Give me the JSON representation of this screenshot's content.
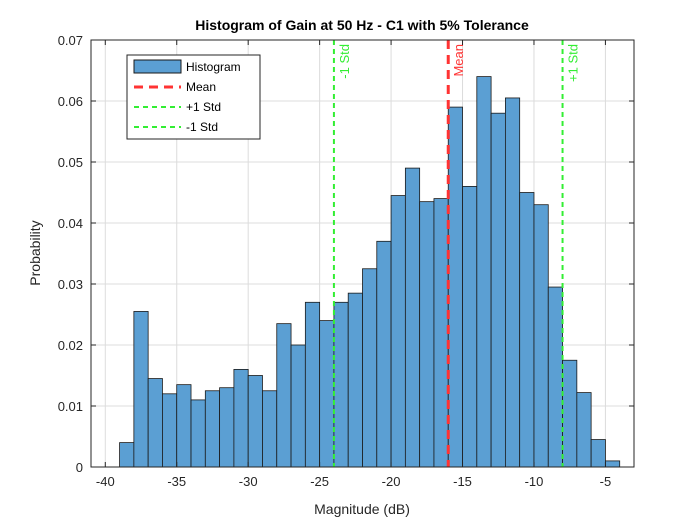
{
  "chart_data": {
    "type": "bar",
    "title": "Histogram of Gain at 50 Hz - C1 with 5% Tolerance",
    "xlabel": "Magnitude (dB)",
    "ylabel": "Probability",
    "xlim": [
      -41,
      -3
    ],
    "ylim": [
      0,
      0.07
    ],
    "xticks": [
      -40,
      -35,
      -30,
      -25,
      -20,
      -15,
      -10,
      -5
    ],
    "yticks": [
      0,
      0.01,
      0.02,
      0.03,
      0.04,
      0.05,
      0.06,
      0.07
    ],
    "xtick_labels": [
      "-40",
      "-35",
      "-30",
      "-25",
      "-20",
      "-15",
      "-10",
      "-5"
    ],
    "ytick_labels": [
      "0",
      "0.01",
      "0.02",
      "0.03",
      "0.04",
      "0.05",
      "0.06",
      "0.07"
    ],
    "grid": true,
    "legend_placement": "top-left",
    "bin_edges": [
      -39.0,
      -38.0,
      -37.0,
      -36.0,
      -35.0,
      -34.0,
      -33.0,
      -32.0,
      -31.0,
      -30.0,
      -29.0,
      -28.0,
      -27.0,
      -26.0,
      -25.0,
      -24.0,
      -23.0,
      -22.0,
      -21.0,
      -20.0,
      -19.0,
      -18.0,
      -17.0,
      -16.0,
      -15.0,
      -14.0,
      -13.0,
      -12.0,
      -11.0,
      -10.0,
      -9.0,
      -8.0,
      -7.0,
      -6.0,
      -5.0,
      -4.0
    ],
    "values": [
      0.004,
      0.0255,
      0.0145,
      0.012,
      0.0135,
      0.011,
      0.0125,
      0.013,
      0.016,
      0.015,
      0.0125,
      0.0235,
      0.02,
      0.027,
      0.024,
      0.027,
      0.0285,
      0.0325,
      0.037,
      0.0445,
      0.049,
      0.0435,
      0.044,
      0.059,
      0.046,
      0.064,
      0.058,
      0.0605,
      0.045,
      0.043,
      0.0295,
      0.0175,
      0.0122,
      0.0045,
      0.001
    ],
    "mean": -16,
    "plus_std": -8,
    "minus_std": -24,
    "colors": {
      "bar_fill": "#5b9fd3",
      "bar_edge": "#1a1a1a",
      "mean_line": "#ff3333",
      "std_line": "#33ee33",
      "grid": "#dcdcdc"
    },
    "legend": [
      "Histogram",
      "Mean",
      "+1 Std",
      "-1 Std"
    ],
    "annotations": {
      "mean": "Mean",
      "plus_std": "+1 Std",
      "minus_std": "-1 Std"
    }
  }
}
